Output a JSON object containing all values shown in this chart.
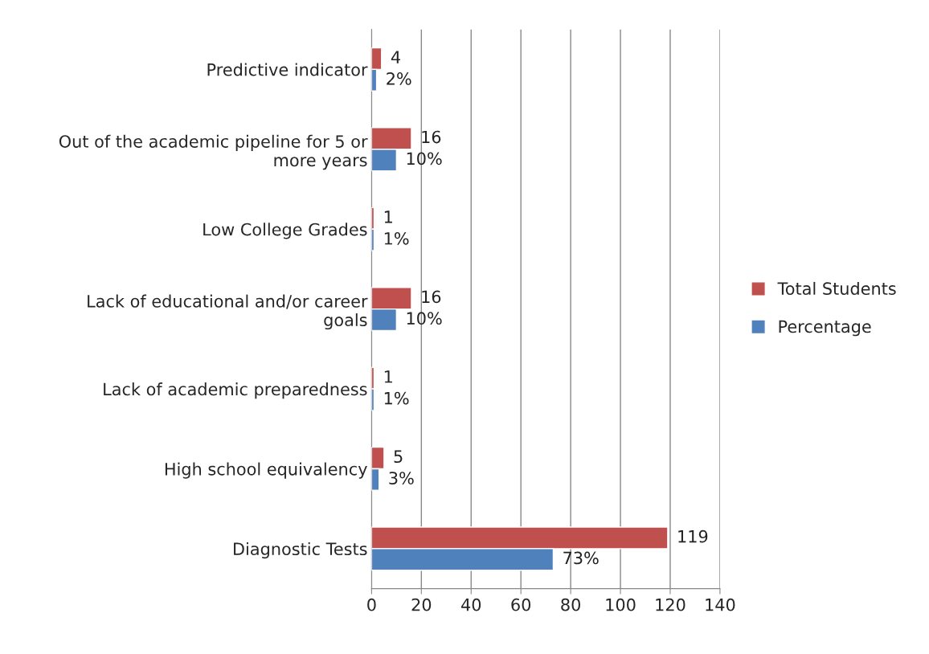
{
  "chart_data": {
    "type": "bar",
    "orientation": "horizontal",
    "categories": [
      "Predictive indicator",
      "Out of the academic pipeline for 5 or more years",
      "Low College Grades",
      "Lack of educational and/or career goals",
      "Lack of academic preparedness",
      "High school equivalency",
      "Diagnostic Tests"
    ],
    "series": [
      {
        "name": "Total Students",
        "color": "#c0504d",
        "values": [
          4,
          16,
          1,
          16,
          1,
          5,
          119
        ],
        "value_labels": [
          "4",
          "16",
          "1",
          "16",
          "1",
          "5",
          "119"
        ]
      },
      {
        "name": "Percentage",
        "color": "#4f81bd",
        "values": [
          2,
          10,
          1,
          10,
          1,
          3,
          73
        ],
        "value_labels": [
          "2%",
          "10%",
          "1%",
          "10%",
          "1%",
          "3%",
          "73%"
        ]
      }
    ],
    "xlim": [
      0,
      140
    ],
    "xticks": [
      0,
      20,
      40,
      60,
      80,
      100,
      120,
      140
    ],
    "grid": "x",
    "legend": "right"
  }
}
